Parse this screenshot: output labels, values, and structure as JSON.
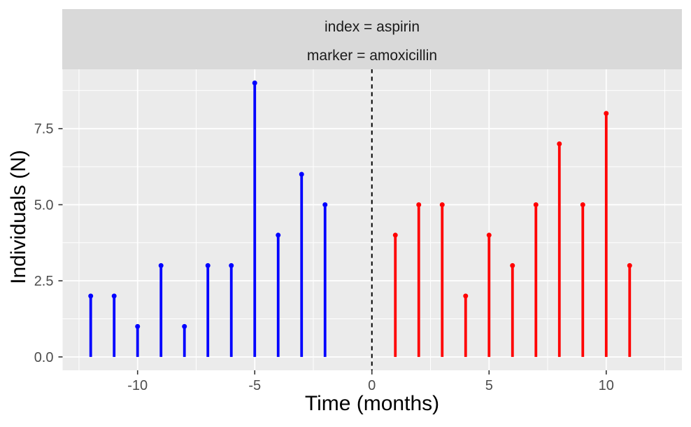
{
  "chart_data": {
    "type": "lollipop",
    "strip_labels": [
      "index = aspirin",
      "marker = amoxicillin"
    ],
    "xlabel": "Time (months)",
    "ylabel": "Individuals (N)",
    "x_ticks": [
      {
        "value": -10,
        "label": "-10"
      },
      {
        "value": -5,
        "label": "-5"
      },
      {
        "value": 0,
        "label": "0"
      },
      {
        "value": 5,
        "label": "5"
      },
      {
        "value": 10,
        "label": "10"
      }
    ],
    "y_ticks": [
      {
        "value": 0,
        "label": "0.0"
      },
      {
        "value": 2.5,
        "label": "2.5"
      },
      {
        "value": 5,
        "label": "5.0"
      },
      {
        "value": 7.5,
        "label": "7.5"
      }
    ],
    "x_minor_gridlines": [
      -12.5,
      -7.5,
      -2.5,
      2.5,
      7.5,
      12.5
    ],
    "y_minor_gridlines": [
      1.25,
      3.75,
      6.25,
      8.75
    ],
    "xlim": [
      -13.2,
      13.23
    ],
    "ylim": [
      -0.44,
      9.46
    ],
    "reference_line_x": 0,
    "series": [
      {
        "name": "index",
        "color": "#0000FF",
        "x": [
          -12,
          -11,
          -10,
          -9,
          -8,
          -7,
          -6,
          -5,
          -4,
          -3,
          -2
        ],
        "y": [
          2,
          2,
          1,
          3,
          1,
          3,
          3,
          9,
          4,
          6,
          5
        ]
      },
      {
        "name": "marker",
        "color": "#FF0000",
        "x": [
          1,
          2,
          3,
          4,
          5,
          6,
          7,
          8,
          9,
          10,
          11
        ],
        "y": [
          4,
          5,
          5,
          2,
          4,
          3,
          5,
          7,
          5,
          8,
          3
        ]
      }
    ],
    "colors": {
      "figure_background": "#FFFFFF",
      "panel_background": "#EBEBEB",
      "strip_background": "#D9D9D9",
      "gridline": "#FFFFFF",
      "tick_mark": "#333333",
      "tick_label": "#4D4D4D",
      "axis_title": "#000000",
      "strip_text": "#1A1A1A",
      "reference_line": "#000000"
    }
  }
}
